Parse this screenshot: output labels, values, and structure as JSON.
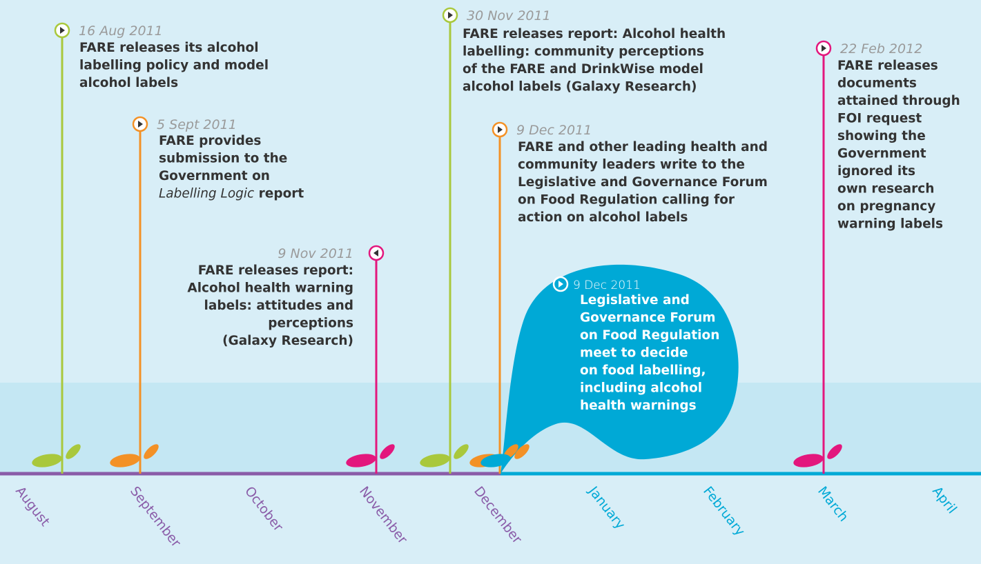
{
  "months": [
    "August",
    "September",
    "October",
    "November",
    "December",
    "January",
    "February",
    "March",
    "April"
  ],
  "events": [
    {
      "date": "16 Aug 2011",
      "lines": [
        "FARE releases its alcohol",
        "labelling policy and model",
        "alcohol labels"
      ]
    },
    {
      "date": "5 Sept 2011",
      "lines": [
        "FARE provides",
        "submission to the",
        "Government on"
      ],
      "italic_title": "Labelling Logic",
      "after_title": " report"
    },
    {
      "date": "9 Nov 2011",
      "lines": [
        "FARE releases report:",
        "Alcohol health warning",
        "labels: attitudes and",
        "perceptions",
        "(Galaxy Research)"
      ]
    },
    {
      "date": "30 Nov 2011",
      "lines": [
        "FARE releases report: Alcohol health",
        "labelling: community perceptions",
        "of the FARE and DrinkWise model",
        "alcohol labels (Galaxy Research)"
      ]
    },
    {
      "date": "9 Dec 2011",
      "lines": [
        "FARE and other leading health and",
        "community leaders write to the",
        "Legislative and Governance Forum",
        "on Food Regulation calling for",
        "action on alcohol labels"
      ]
    },
    {
      "date": "9 Dec 2011",
      "lines": [
        "Legislative and",
        "Governance Forum",
        "on Food Regulation",
        "meet to decide",
        "on food labelling,",
        "including alcohol",
        "health warnings"
      ]
    },
    {
      "date": "22 Feb 2012",
      "lines": [
        "FARE releases",
        "documents",
        "attained through",
        "FOI request",
        "showing the",
        "Government",
        "ignored its",
        "own research",
        "on pregnancy",
        "warning labels"
      ]
    }
  ]
}
